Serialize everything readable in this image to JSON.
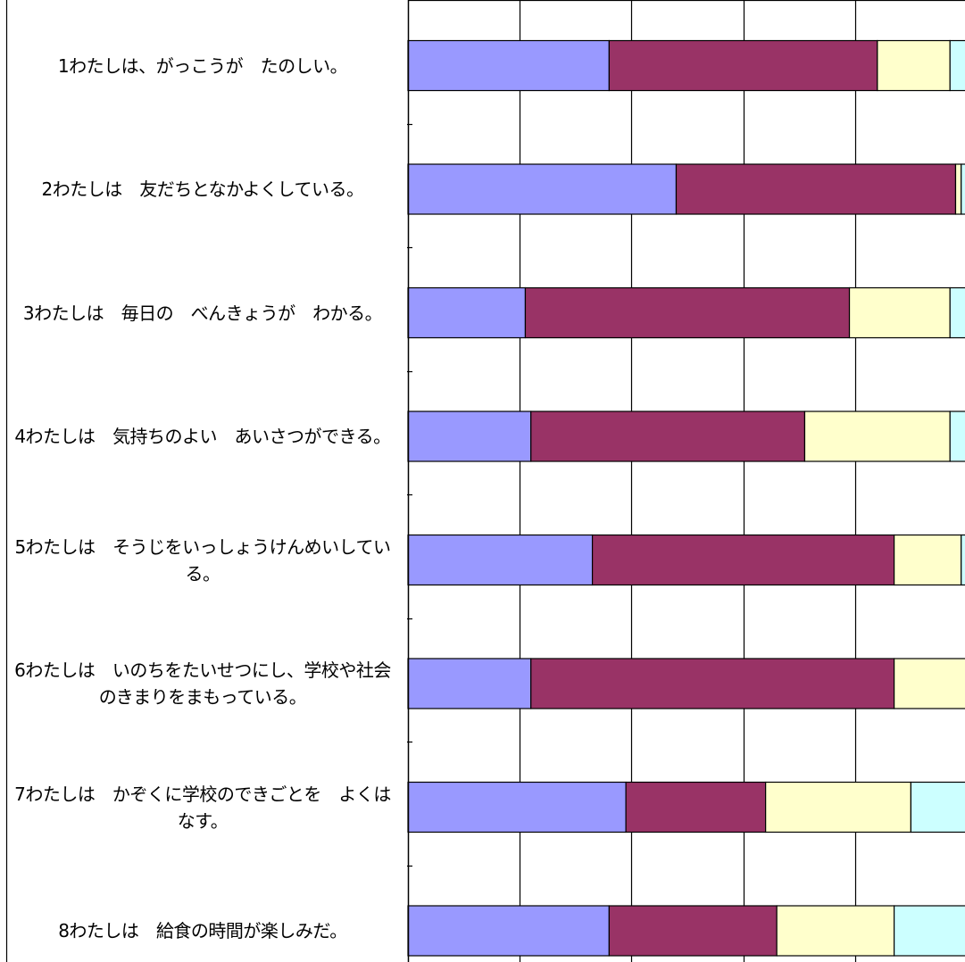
{
  "chart_data": {
    "type": "bar",
    "orientation": "horizontal",
    "stacked": true,
    "normalized": true,
    "categories": [
      "1わたしは、がっこうが　たのしい。",
      "2わたしは　友だちとなかよくしている。",
      "3わたしは　毎日の　べんきょうが　わかる。",
      "4わたしは　気持ちのよい　あいさつができる。",
      "5わたしは　そうじをいっしょうけんめいしている。",
      "6わたしは　いのちをたいせつにし、学校や社会のきまりをまもっている。",
      "7わたしは　かぞくに学校のできごとを　よくはなす。",
      "8わたしは　給食の時間が楽しみだ。"
    ],
    "series": [
      {
        "values": [
          36,
          48,
          21,
          22,
          33,
          22,
          39,
          36
        ]
      },
      {
        "values": [
          48,
          50,
          58,
          49,
          54,
          65,
          25,
          30
        ]
      },
      {
        "values": [
          13,
          1,
          18,
          26,
          12,
          16,
          26,
          21
        ]
      },
      {
        "values": [
          3,
          1,
          3,
          3,
          1,
          1,
          10,
          13
        ]
      }
    ],
    "colors": [
      "#9999ff",
      "#993366",
      "#ffffcc",
      "#ccffff"
    ],
    "xlim": [
      0,
      100
    ],
    "grid": true
  }
}
